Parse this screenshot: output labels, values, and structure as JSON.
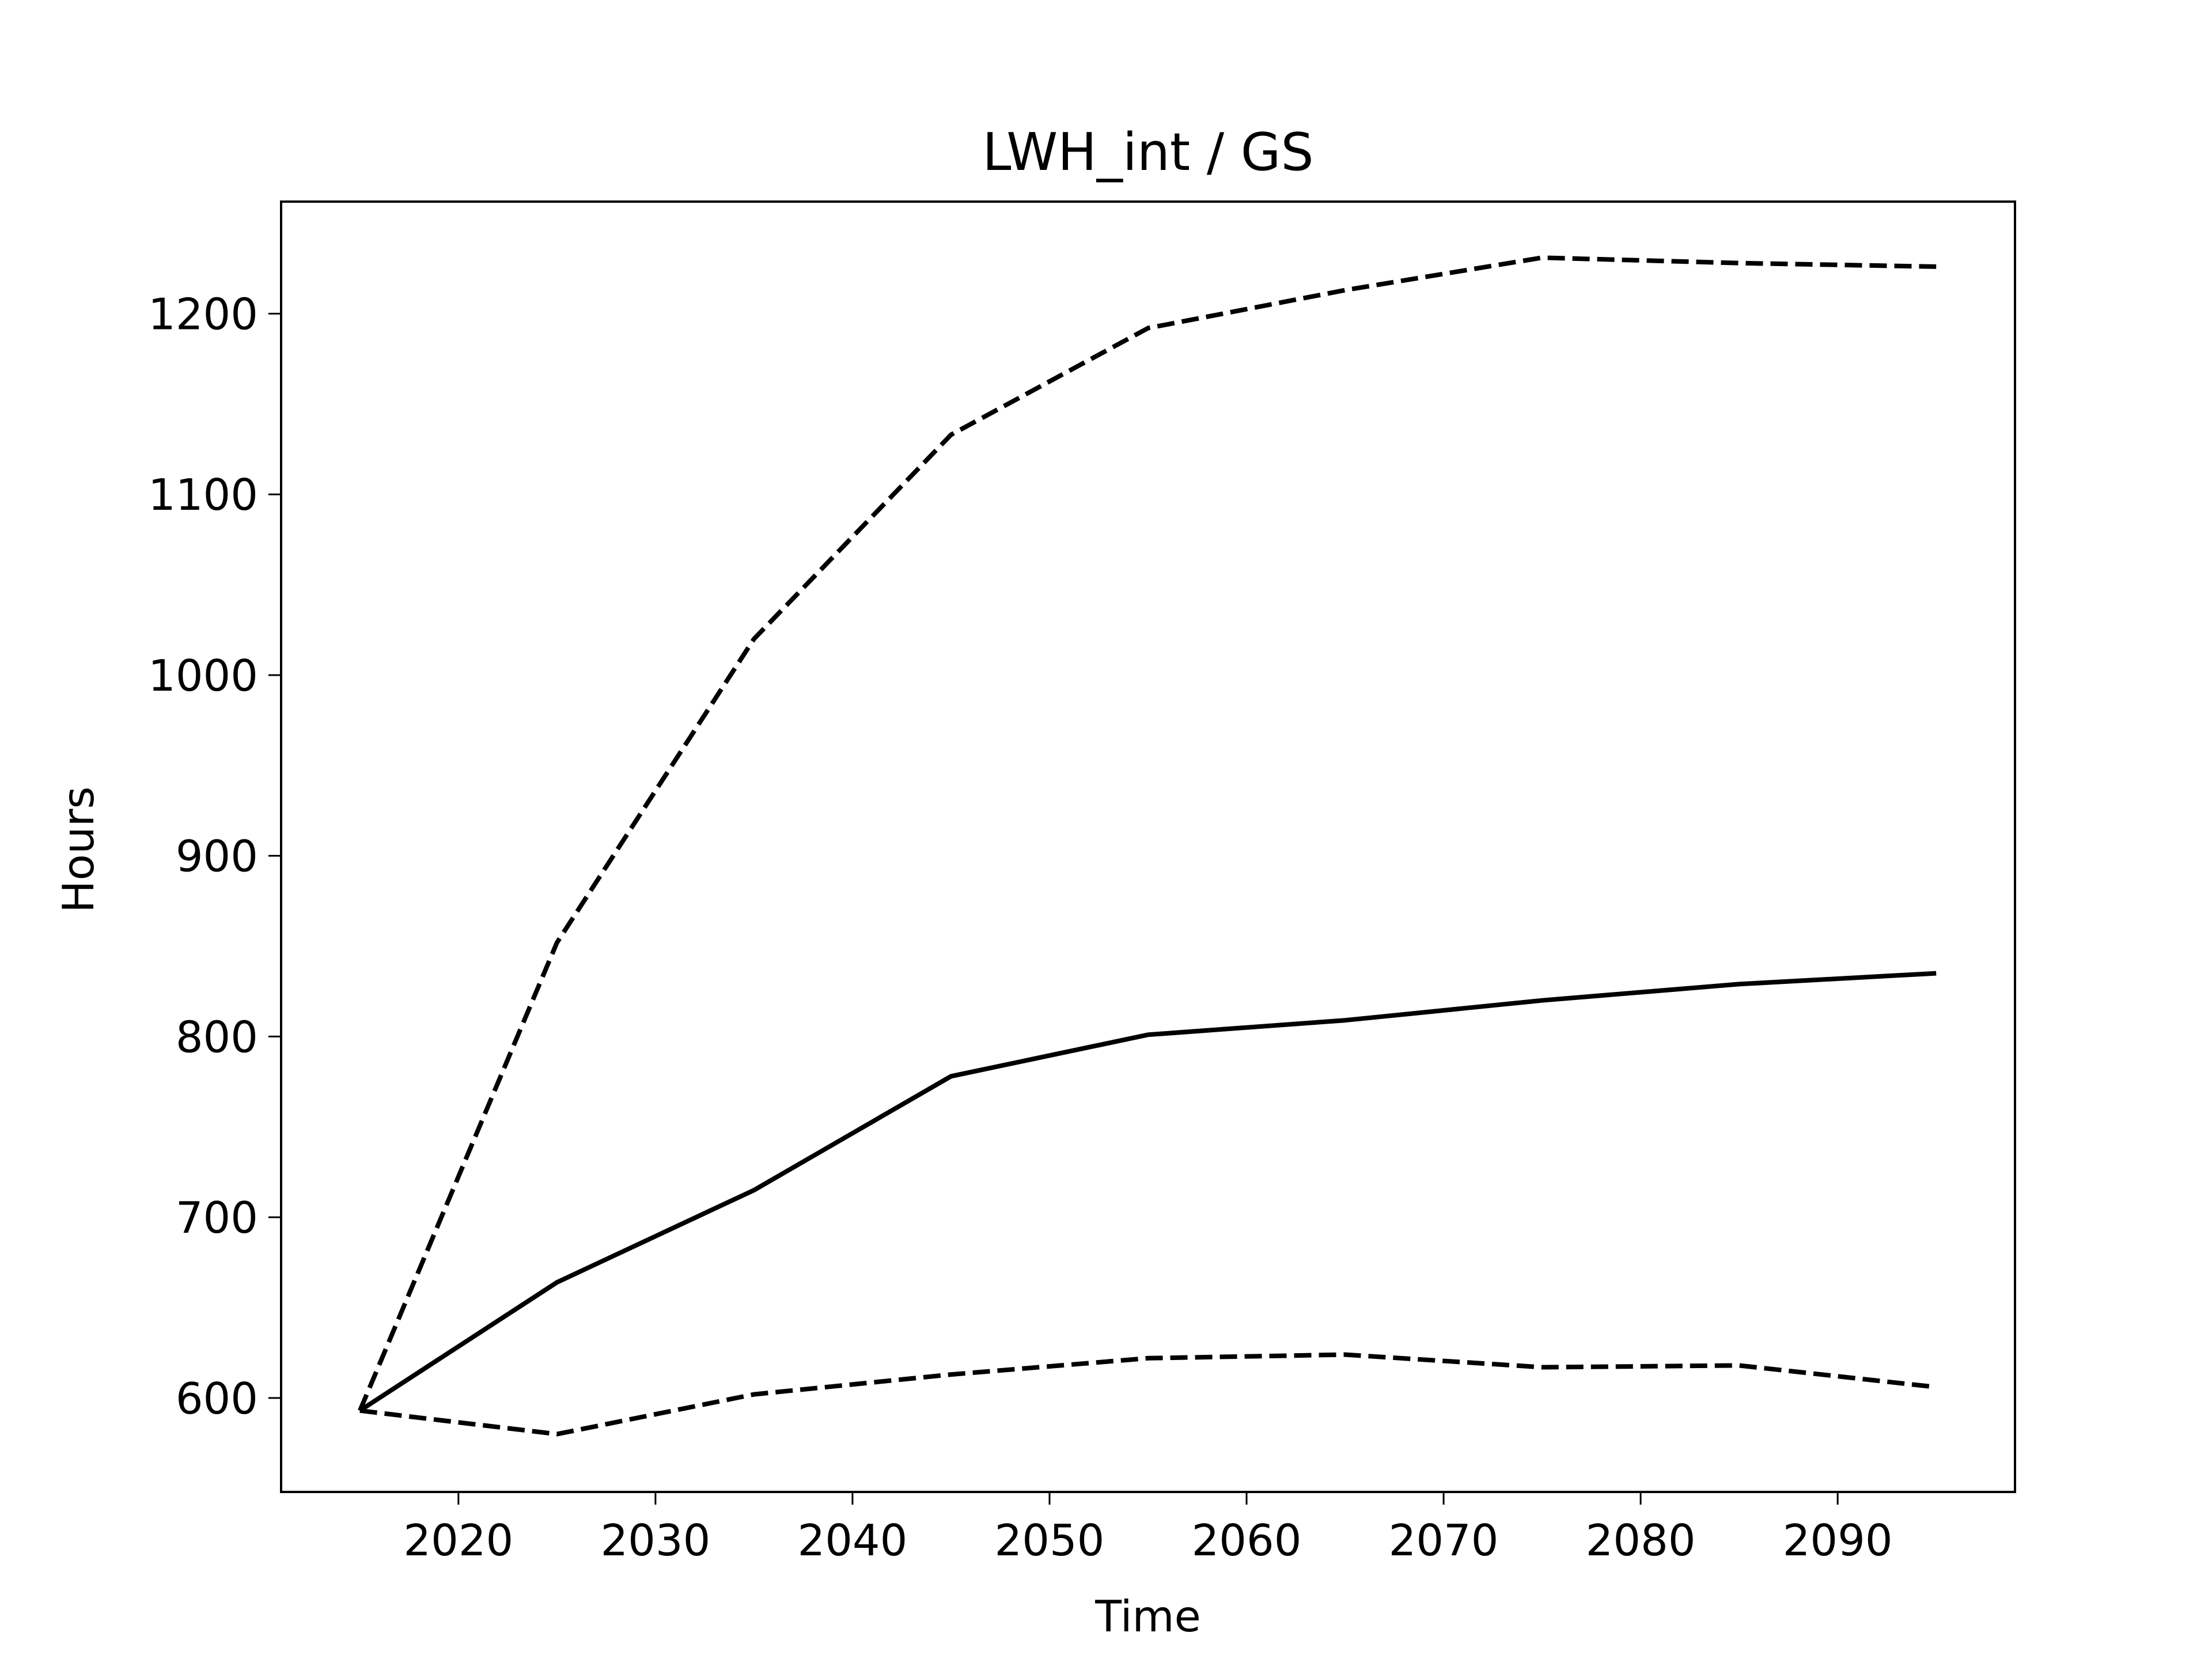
{
  "chart_data": {
    "type": "line",
    "title": "LWH_int / GS",
    "xlabel": "Time",
    "ylabel": "Hours",
    "xlim": [
      2011,
      2099
    ],
    "ylim": [
      548,
      1262
    ],
    "xticks": [
      2020,
      2030,
      2040,
      2050,
      2060,
      2070,
      2080,
      2090
    ],
    "yticks": [
      600,
      700,
      800,
      900,
      1000,
      1100,
      1200
    ],
    "grid": false,
    "legend": "none",
    "x": [
      2015,
      2025,
      2035,
      2045,
      2055,
      2065,
      2075,
      2085,
      2095
    ],
    "series": [
      {
        "style": "solid",
        "color": "#000000",
        "values": [
          593,
          664,
          715,
          778,
          801,
          809,
          820,
          829,
          835
        ]
      },
      {
        "style": "dashed",
        "color": "#000000",
        "values": [
          593,
          852,
          1020,
          1133,
          1192,
          1213,
          1231,
          1228,
          1226
        ]
      },
      {
        "style": "dashed",
        "color": "#000000",
        "values": [
          593,
          580,
          602,
          613,
          622,
          624,
          617,
          618,
          606
        ]
      }
    ]
  }
}
